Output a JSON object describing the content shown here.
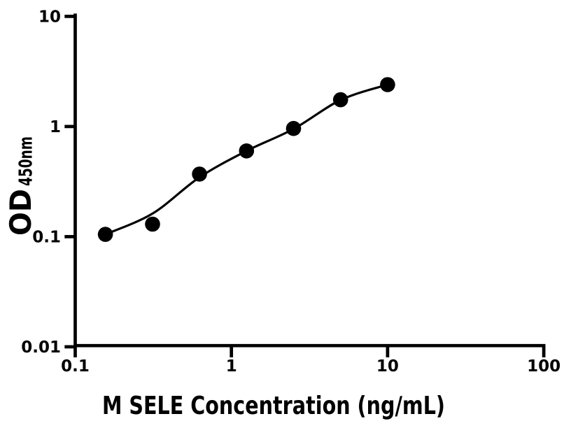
{
  "figure": {
    "background_color": "#ffffff",
    "foreground_color": "#000000"
  },
  "chart_data": {
    "type": "scatter",
    "title": "",
    "xlabel": "M SELE Concentration (ng/mL)",
    "ylabel": "OD450nm",
    "ylabel_main": "OD",
    "ylabel_sub": "450nm",
    "x_scale": "log",
    "y_scale": "log",
    "xlim": [
      0.1,
      100
    ],
    "ylim": [
      0.01,
      10
    ],
    "grid": false,
    "legend": null,
    "axis_color": "#000000",
    "x_ticks": {
      "values": [
        0.1,
        1,
        10,
        100
      ],
      "labels": [
        "0.1",
        "1",
        "10",
        "100"
      ]
    },
    "y_ticks": {
      "values": [
        0.01,
        0.1,
        1,
        10
      ],
      "labels": [
        "0.01",
        "0.1",
        "1",
        "10"
      ]
    },
    "series": [
      {
        "x": [
          0.156,
          0.3125,
          0.625,
          1.25,
          2.5,
          5,
          10
        ],
        "y": [
          0.105,
          0.13,
          0.37,
          0.6,
          0.96,
          1.75,
          2.4
        ],
        "marker": "filled-circle",
        "marker_radius_px": 10.8,
        "color": "#000000",
        "line_color": "#000000"
      }
    ],
    "fit_curve": {
      "x": [
        0.156,
        0.3125,
        0.625,
        1.25,
        2.5,
        5,
        10
      ],
      "y": [
        0.105,
        0.162,
        0.346,
        0.6,
        0.95,
        1.74,
        2.4
      ],
      "color": "#000000"
    }
  }
}
